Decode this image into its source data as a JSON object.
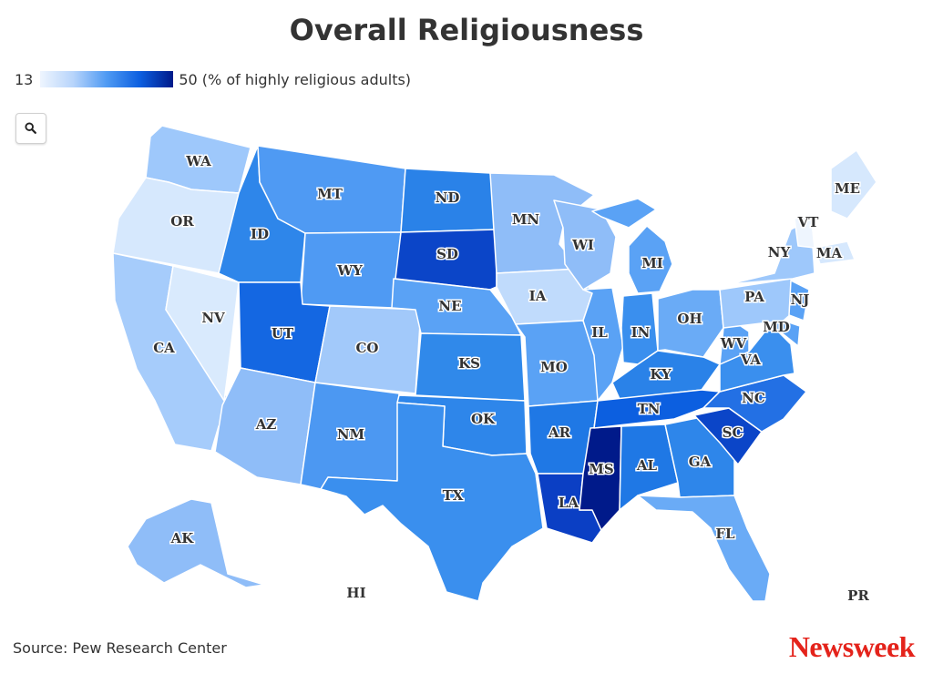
{
  "title": "Overall Religiousness",
  "legend": {
    "min": "13",
    "max": "50 (% of highly religious adults)",
    "colors": [
      "#eef5fe",
      "#b7d4fb",
      "#4f9af3",
      "#0c5fe0",
      "#001a8a"
    ]
  },
  "search_button": {
    "icon": "search-icon"
  },
  "states": [
    {
      "code": "WA",
      "color": "#9ec8fb"
    },
    {
      "code": "OR",
      "color": "#d6e8fd"
    },
    {
      "code": "CA",
      "color": "#a6ccfb"
    },
    {
      "code": "NV",
      "color": "#d9eafd"
    },
    {
      "code": "ID",
      "color": "#2e86ea"
    },
    {
      "code": "MT",
      "color": "#4f9af3"
    },
    {
      "code": "WY",
      "color": "#4f9af3"
    },
    {
      "code": "UT",
      "color": "#1467e2"
    },
    {
      "code": "AZ",
      "color": "#8fbdf8"
    },
    {
      "code": "CO",
      "color": "#a2c9fa"
    },
    {
      "code": "NM",
      "color": "#4c98f2"
    },
    {
      "code": "ND",
      "color": "#2a82e8"
    },
    {
      "code": "SD",
      "color": "#0b45c8"
    },
    {
      "code": "NE",
      "color": "#5aa2f5"
    },
    {
      "code": "KS",
      "color": "#3089ea"
    },
    {
      "code": "OK",
      "color": "#2e86ea"
    },
    {
      "code": "TX",
      "color": "#3a8fee"
    },
    {
      "code": "MN",
      "color": "#8fbdf8"
    },
    {
      "code": "IA",
      "color": "#c0dbfc"
    },
    {
      "code": "MO",
      "color": "#5aa2f5"
    },
    {
      "code": "AR",
      "color": "#1f78e5"
    },
    {
      "code": "LA",
      "color": "#0b3fc4"
    },
    {
      "code": "WI",
      "color": "#8fbdf8"
    },
    {
      "code": "IL",
      "color": "#5aa2f5"
    },
    {
      "code": "MS",
      "color": "#001a8a"
    },
    {
      "code": "MI",
      "color": "#5aa2f5"
    },
    {
      "code": "IN",
      "color": "#3a8fee"
    },
    {
      "code": "KY",
      "color": "#2a82e8"
    },
    {
      "code": "TN",
      "color": "#0c5fe0"
    },
    {
      "code": "AL",
      "color": "#1f78e5"
    },
    {
      "code": "OH",
      "color": "#6aabf6"
    },
    {
      "code": "GA",
      "color": "#2e86ea"
    },
    {
      "code": "FL",
      "color": "#6aabf6"
    },
    {
      "code": "SC",
      "color": "#0b45c8"
    },
    {
      "code": "NC",
      "color": "#2370e4"
    },
    {
      "code": "VA",
      "color": "#3a8fee"
    },
    {
      "code": "WV",
      "color": "#5aa2f5"
    },
    {
      "code": "PA",
      "color": "#9ec8fb"
    },
    {
      "code": "NY",
      "color": "#9ec8fb"
    },
    {
      "code": "NJ",
      "color": "#5aa2f5"
    },
    {
      "code": "MD",
      "color": "#5aa2f5"
    },
    {
      "code": "ME",
      "color": "#d6e8fd"
    },
    {
      "code": "VT",
      "color": "#eef5fe"
    },
    {
      "code": "MA",
      "color": "#d6e8fd"
    },
    {
      "code": "AK",
      "color": "#8fbdf8"
    },
    {
      "code": "HI",
      "color": ""
    },
    {
      "code": "PR",
      "color": ""
    }
  ],
  "source": "Source: Pew Research Center",
  "brand": "Newsweek"
}
